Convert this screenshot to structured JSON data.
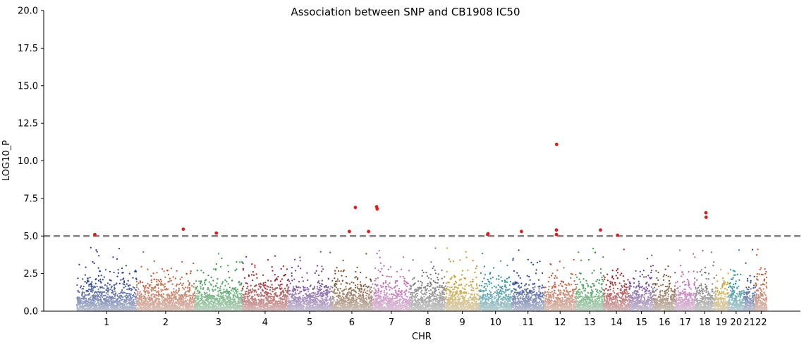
{
  "chart_data": {
    "type": "scatter",
    "subtype": "manhattan",
    "title": "Association between SNP and CB1908 IC50",
    "xlabel": "CHR",
    "ylabel": "LOG10_P",
    "ylim": [
      0,
      20
    ],
    "yticks": [
      "0.0",
      "2.5",
      "5.0",
      "7.5",
      "10.0",
      "12.5",
      "15.0",
      "17.5",
      "20.0"
    ],
    "grid": false,
    "legend": "none",
    "threshold": {
      "value": 5.0,
      "style": "dashed",
      "color": "#808080"
    },
    "significant_color": "#e31a1c",
    "chromosomes": [
      {
        "label": "1",
        "length": 249,
        "color": "#1f3a8f"
      },
      {
        "label": "2",
        "length": 243,
        "color": "#c0532b"
      },
      {
        "label": "3",
        "length": 198,
        "color": "#2e9a44"
      },
      {
        "label": "4",
        "length": 191,
        "color": "#a31b1b"
      },
      {
        "label": "5",
        "length": 181,
        "color": "#6a3d9a"
      },
      {
        "label": "6",
        "length": 171,
        "color": "#7b4a24"
      },
      {
        "label": "7",
        "length": 159,
        "color": "#c25ab0"
      },
      {
        "label": "8",
        "length": 146,
        "color": "#6e6e6e"
      },
      {
        "label": "9",
        "length": 141,
        "color": "#c99a1e"
      },
      {
        "label": "10",
        "length": 136,
        "color": "#1b8a99"
      },
      {
        "label": "11",
        "length": 135,
        "color": "#1f3a8f"
      },
      {
        "label": "12",
        "length": 133,
        "color": "#c0532b"
      },
      {
        "label": "13",
        "length": 115,
        "color": "#2e9a44"
      },
      {
        "label": "14",
        "length": 107,
        "color": "#a31b1b"
      },
      {
        "label": "15",
        "length": 102,
        "color": "#6a3d9a"
      },
      {
        "label": "16",
        "length": 90,
        "color": "#7b4a24"
      },
      {
        "label": "17",
        "length": 83,
        "color": "#c25ab0"
      },
      {
        "label": "18",
        "length": 80,
        "color": "#6e6e6e"
      },
      {
        "label": "19",
        "length": 59,
        "color": "#c99a1e"
      },
      {
        "label": "20",
        "length": 64,
        "color": "#1b8a99"
      },
      {
        "label": "21",
        "length": 47,
        "color": "#1f3a8f"
      },
      {
        "label": "22",
        "length": 51,
        "color": "#c0532b"
      }
    ],
    "significant_points": [
      {
        "chr": "1",
        "pos": 75,
        "y": 5.1
      },
      {
        "chr": "2",
        "pos": 195,
        "y": 5.45
      },
      {
        "chr": "3",
        "pos": 90,
        "y": 5.2
      },
      {
        "chr": "6",
        "pos": 75,
        "y": 5.3
      },
      {
        "chr": "6",
        "pos": 100,
        "y": 6.9
      },
      {
        "chr": "6",
        "pos": 155,
        "y": 5.3
      },
      {
        "chr": "7",
        "pos": 18,
        "y": 6.95
      },
      {
        "chr": "7",
        "pos": 20,
        "y": 6.8
      },
      {
        "chr": "10",
        "pos": 35,
        "y": 5.1
      },
      {
        "chr": "10",
        "pos": 37,
        "y": 5.15
      },
      {
        "chr": "11",
        "pos": 40,
        "y": 5.3
      },
      {
        "chr": "12",
        "pos": 52,
        "y": 11.1
      },
      {
        "chr": "12",
        "pos": 51,
        "y": 5.4
      },
      {
        "chr": "12",
        "pos": 51,
        "y": 5.1
      },
      {
        "chr": "13",
        "pos": 102,
        "y": 5.4
      },
      {
        "chr": "14",
        "pos": 58,
        "y": 5.05
      },
      {
        "chr": "18",
        "pos": 45,
        "y": 6.55
      },
      {
        "chr": "18",
        "pos": 46,
        "y": 6.25
      }
    ]
  }
}
